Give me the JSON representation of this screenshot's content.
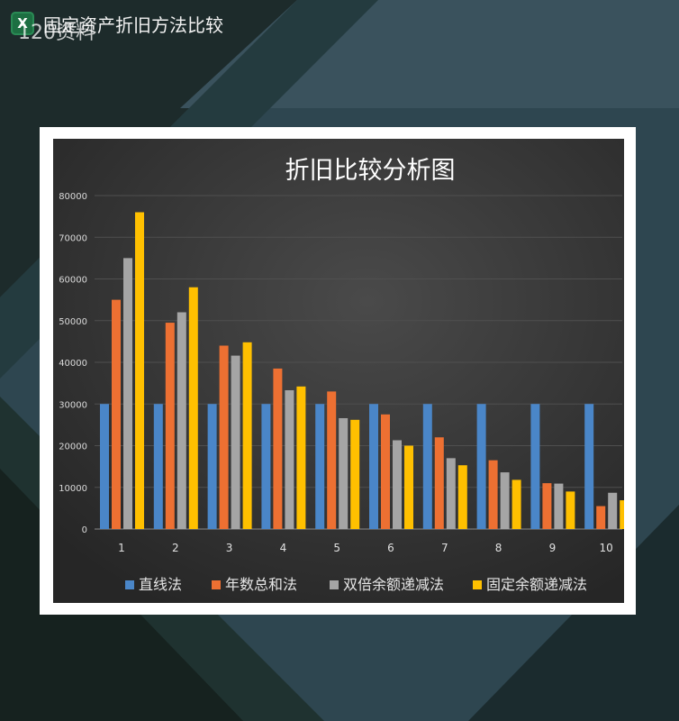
{
  "header": {
    "title": "固定资产折旧方法比较",
    "icon_label": "X"
  },
  "watermark": "120资料",
  "colors": {
    "background": "#253a43",
    "chart_bg": "#2f2f2f"
  },
  "chart_data": {
    "type": "bar",
    "title": "折旧比较分析图",
    "categories": [
      "1",
      "2",
      "3",
      "4",
      "5",
      "6",
      "7",
      "8",
      "9",
      "10"
    ],
    "ylim": [
      0,
      80000
    ],
    "yticks": [
      0,
      10000,
      20000,
      30000,
      40000,
      50000,
      60000,
      70000,
      80000
    ],
    "legend_position": "bottom",
    "series": [
      {
        "name": "直线法",
        "color": "#4a86c8",
        "values": [
          30000,
          30000,
          30000,
          30000,
          30000,
          30000,
          30000,
          30000,
          30000,
          30000
        ]
      },
      {
        "name": "年数总和法",
        "color": "#ed7032",
        "values": [
          55000,
          49500,
          44000,
          38500,
          33000,
          27500,
          22000,
          16500,
          11000,
          5500
        ]
      },
      {
        "name": "双倍余额递减法",
        "color": "#a5a5a5",
        "values": [
          65000,
          52000,
          41600,
          33300,
          26600,
          21300,
          17000,
          13600,
          10900,
          8700
        ]
      },
      {
        "name": "固定余额递减法",
        "color": "#ffc000",
        "values": [
          76000,
          58000,
          44800,
          34200,
          26200,
          20000,
          15300,
          11800,
          9000,
          6900
        ]
      }
    ]
  }
}
